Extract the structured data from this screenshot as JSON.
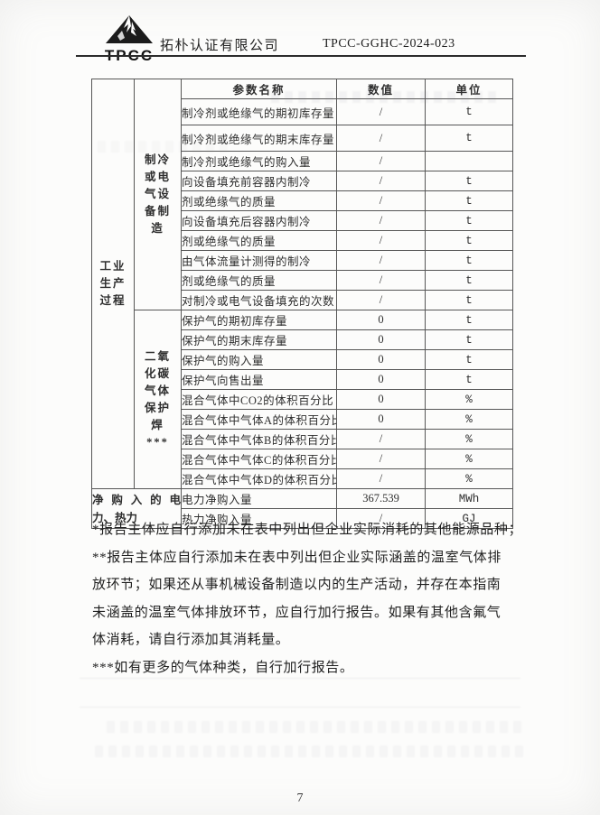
{
  "header": {
    "logo_text": "TPCC",
    "company": "拓朴认证有限公司",
    "doc_number": "TPCC-GGHC-2024-023"
  },
  "table": {
    "columns": [
      "参数名称",
      "数值",
      "单位"
    ],
    "group_outer": {
      "label_lines": [
        "工业",
        "生产",
        "过程"
      ]
    },
    "group_refrigeration": {
      "label_lines": [
        "制冷",
        "或电",
        "气设",
        "备制",
        "造"
      ]
    },
    "group_co2_welding": {
      "label_lines": [
        "二氧",
        "化碳",
        "气体",
        "保护",
        "焊",
        "***"
      ]
    },
    "group_net_purchase": {
      "label_lines": [
        "净购入的电",
        "力、热力"
      ]
    },
    "rows_refrigeration": [
      {
        "name": "制冷剂或绝缘气的期初库存量",
        "value": "/",
        "unit": "t"
      },
      {
        "name": "制冷剂或绝缘气的期末库存量",
        "value": "/",
        "unit": "t"
      },
      {
        "name": "制冷剂或绝缘气的购入量",
        "value": "/",
        "unit": ""
      },
      {
        "name": "向设备填充前容器内制冷",
        "value": "/",
        "unit": "t"
      },
      {
        "name": "剂或绝缘气的质量",
        "value": "/",
        "unit": "t"
      },
      {
        "name": "向设备填充后容器内制冷",
        "value": "/",
        "unit": "t"
      },
      {
        "name": "剂或绝缘气的质量",
        "value": "/",
        "unit": "t"
      },
      {
        "name": "由气体流量计测得的制冷",
        "value": "/",
        "unit": "t"
      },
      {
        "name": "剂或绝缘气的质量",
        "value": "/",
        "unit": "t"
      },
      {
        "name": "对制冷或电气设备填充的次数",
        "value": "/",
        "unit": "t"
      }
    ],
    "rows_welding": [
      {
        "name": "保护气的期初库存量",
        "value": "0",
        "unit": "t"
      },
      {
        "name": "保护气的期末库存量",
        "value": "0",
        "unit": "t"
      },
      {
        "name": "保护气的购入量",
        "value": "0",
        "unit": "t"
      },
      {
        "name": "保护气向售出量",
        "value": "0",
        "unit": "t"
      },
      {
        "name": "混合气体中CO2的体积百分比",
        "value": "0",
        "unit": "%"
      },
      {
        "name": "混合气体中气体A的体积百分比",
        "value": "0",
        "unit": "%"
      },
      {
        "name": "混合气体中气体B的体积百分比",
        "value": "/",
        "unit": "%"
      },
      {
        "name": "混合气体中气体C的体积百分比",
        "value": "/",
        "unit": "%"
      },
      {
        "name": "混合气体中气体D的体积百分比",
        "value": "/",
        "unit": "%"
      }
    ],
    "rows_energy": [
      {
        "name": "电力净购入量",
        "value": "367.539",
        "unit": "MWh"
      },
      {
        "name": "热力净购入量",
        "value": "/",
        "unit": "GJ"
      }
    ]
  },
  "footnotes": {
    "lines": [
      "*报告主体应自行添加未在表中列出但企业实际消耗的其他能源品种；",
      "**报告主体应自行添加未在表中列出但企业实际涵盖的温室气体排",
      "放环节；如果还从事机械设备制造以内的生产活动，并存在本指南",
      "未涵盖的温室气体排放环节，应自行加行报告。如果有其他含氟气",
      "体消耗，请自行添加其消耗量。",
      "***如有更多的气体种类，自行加行报告。"
    ]
  },
  "page": {
    "number": "7"
  }
}
